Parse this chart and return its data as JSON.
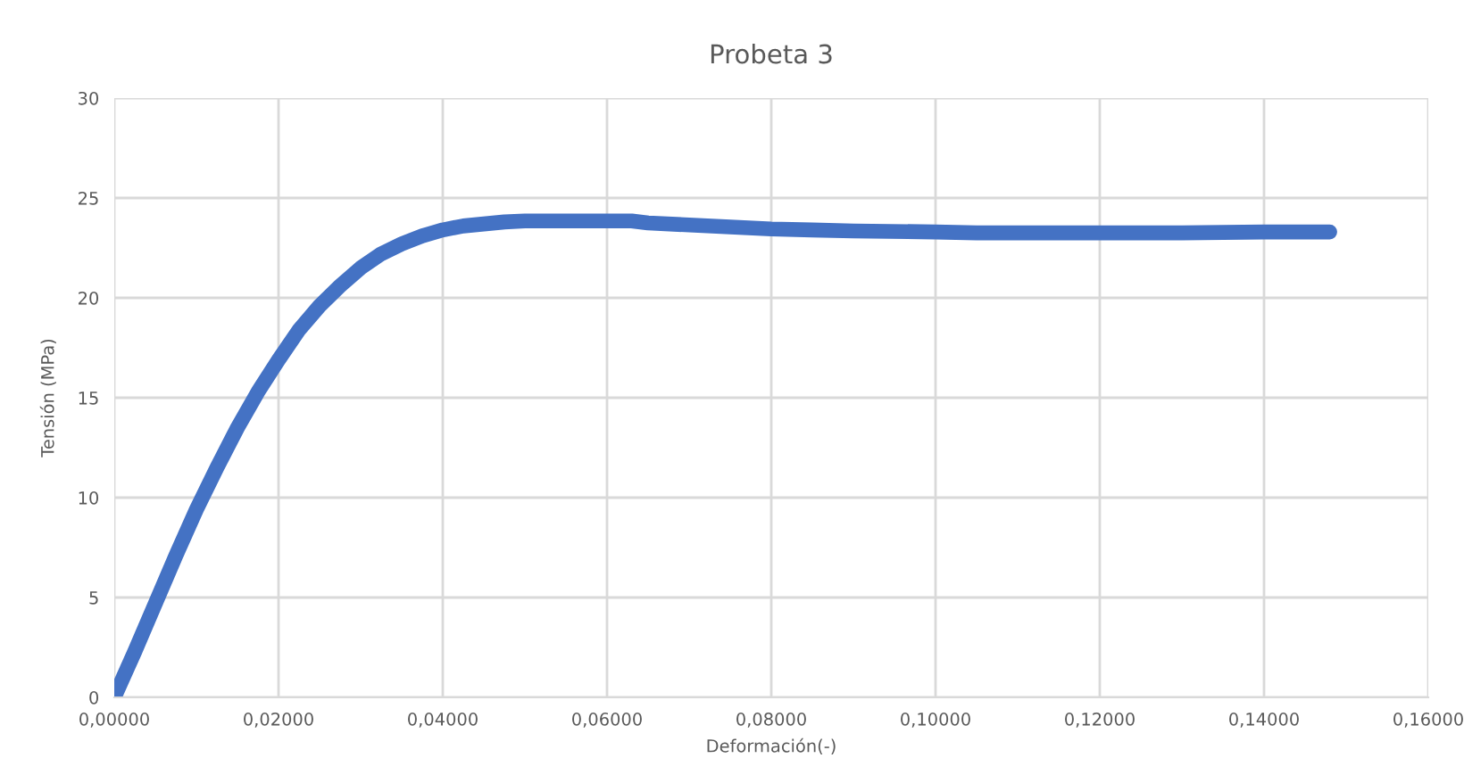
{
  "chart_data": {
    "type": "line",
    "title": "Probeta 3",
    "xlabel": "Deformación(-)",
    "ylabel": "Tensión (MPa)",
    "xlim": [
      0,
      0.16
    ],
    "xticks": [
      {
        "value": 0,
        "label": "0,00000"
      },
      {
        "value": 0.02,
        "label": "0,02000"
      },
      {
        "value": 0.04,
        "label": "0,04000"
      },
      {
        "value": 0.06,
        "label": "0,06000"
      },
      {
        "value": 0.08,
        "label": "0,08000"
      },
      {
        "value": 0.1,
        "label": "0,10000"
      },
      {
        "value": 0.12,
        "label": "0,12000"
      },
      {
        "value": 0.14,
        "label": "0,14000"
      },
      {
        "value": 0.16,
        "label": "0,16000"
      }
    ],
    "ylim": [
      0,
      30
    ],
    "yticks": [
      0,
      5,
      10,
      15,
      20,
      25,
      30
    ],
    "grid": true,
    "marker": "none",
    "line_style": "solid",
    "series": [
      {
        "color": "#4472c4",
        "x": [
          0,
          0.0025,
          0.005,
          0.0075,
          0.01,
          0.0125,
          0.015,
          0.0175,
          0.02,
          0.0225,
          0.025,
          0.0275,
          0.03,
          0.0325,
          0.035,
          0.0375,
          0.04,
          0.0425,
          0.045,
          0.0475,
          0.05,
          0.055,
          0.06,
          0.063,
          0.065,
          0.07,
          0.075,
          0.08,
          0.085,
          0.09,
          0.1,
          0.105,
          0.11,
          0.12,
          0.13,
          0.14,
          0.148
        ],
        "values": [
          0,
          2.3,
          4.7,
          7.1,
          9.4,
          11.5,
          13.5,
          15.3,
          16.9,
          18.4,
          19.6,
          20.6,
          21.5,
          22.2,
          22.7,
          23.1,
          23.4,
          23.6,
          23.7,
          23.8,
          23.85,
          23.85,
          23.85,
          23.85,
          23.75,
          23.65,
          23.55,
          23.45,
          23.4,
          23.35,
          23.3,
          23.25,
          23.25,
          23.25,
          23.25,
          23.3,
          23.3
        ]
      }
    ]
  }
}
